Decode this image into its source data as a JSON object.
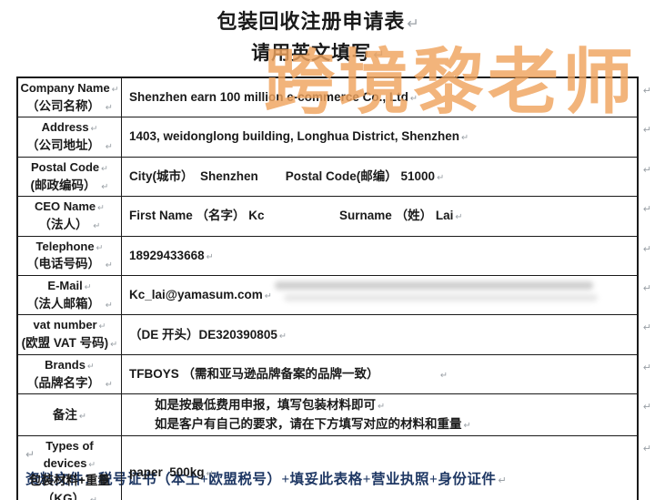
{
  "page": {
    "title": "包装回收注册申请表",
    "subtitle": "请用英文填写",
    "footer_note": "资料文件：税号证书（本土+欧盟税号）+填妥此表格+营业执照+身份证件",
    "footer_color": "#1f3864"
  },
  "watermark": {
    "text": "跨境黎老师",
    "color": "#f0a45f"
  },
  "marks": {
    "return_mark": "↵"
  },
  "form": {
    "rows": [
      {
        "label_en": "Company Name",
        "label_zh": "（公司名称） ",
        "value": "Shenzhen earn 100 million e-commerce Co., Ltd"
      },
      {
        "label_en": "Address",
        "label_zh": "（公司地址） ",
        "value": "1403, weidonglong building, Longhua District, Shenzhen"
      },
      {
        "label_en": "Postal Code",
        "label_zh": "(邮政编码） ",
        "value": "City(城市）  Shenzhen        Postal Code(邮编） 51000"
      },
      {
        "label_en": "CEO Name",
        "label_zh": "（法人） ",
        "value": "First Name （名字） Kc                      Surname （姓） Lai"
      },
      {
        "label_en": "Telephone",
        "label_zh": "（电话号码） ",
        "value": "18929433668"
      },
      {
        "label_en": "E-Mail",
        "label_zh": "（法人邮箱） ",
        "value": "Kc_lai@yamasum.com"
      },
      {
        "label_en": "vat number",
        "label_zh": "(欧盟 VAT 号码)",
        "value": "（DE 开头）DE320390805"
      },
      {
        "label_en": "Brands",
        "label_zh": "（品牌名字） ",
        "value": "TFBOYS （需和亚马逊品牌备案的品牌一致）"
      },
      {
        "label_zh": "备注",
        "value_line1": "如是按最低费用申报，填写包装材料即可",
        "value_line2": "如是客户有自己的要求，请在下方填写对应的材料和重量"
      },
      {
        "label_en": "Types of devices",
        "label_zh": "包装材料+重量",
        "label_zh2": "（KG） ",
        "value": "paper  500kg"
      }
    ]
  }
}
